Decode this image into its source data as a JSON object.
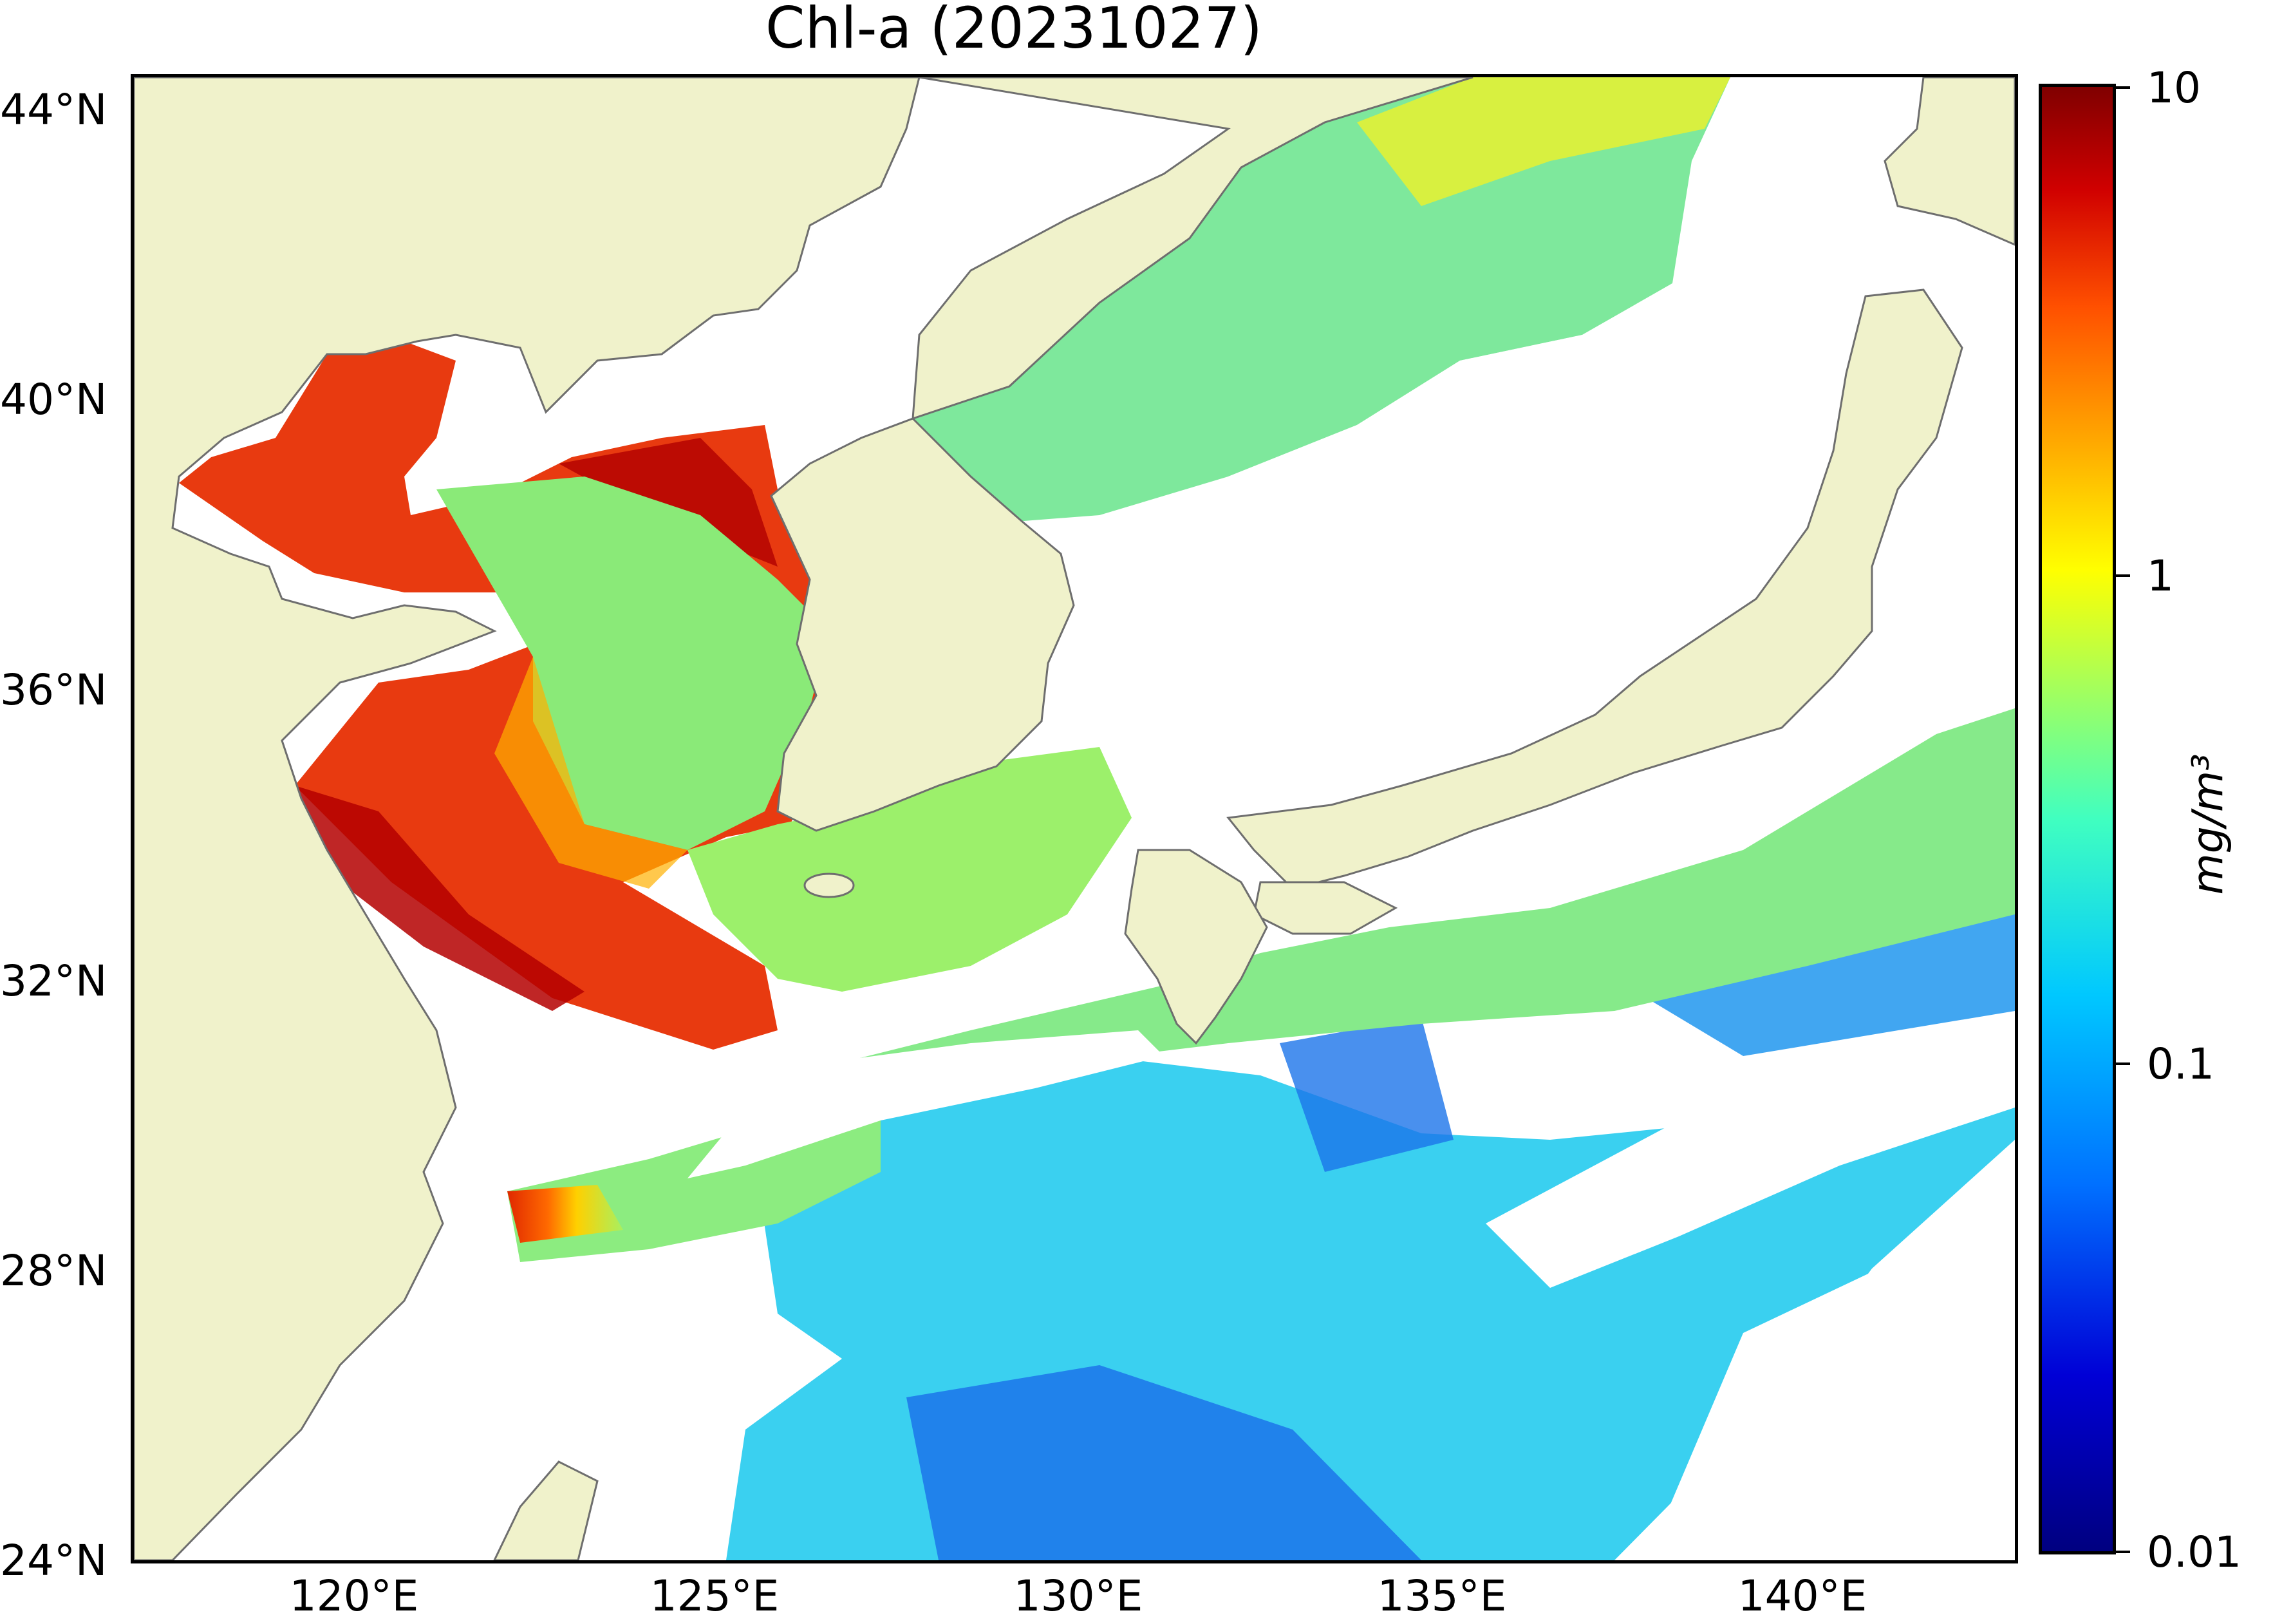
{
  "title": "Chl-a (20231027)",
  "lat_ticks": [
    "44°N",
    "40°N",
    "36°N",
    "32°N",
    "28°N",
    "24°N"
  ],
  "lon_ticks": [
    "120°E",
    "125°E",
    "130°E",
    "135°E",
    "140°E"
  ],
  "extent": {
    "lon_min": 117,
    "lon_max": 143,
    "lat_min": 24,
    "lat_max": 44.5
  },
  "colorbar": {
    "ticks": [
      "10",
      "1",
      "0.1",
      "0.01"
    ],
    "units": "mg/m³",
    "scale": "log",
    "range": [
      0.01,
      10
    ],
    "colormap": "jet"
  },
  "colors": {
    "land": "#f0f2cb",
    "coastline": "#6e6e6e",
    "cloud_nodata": "#ffffff",
    "high": "#d32000",
    "mid": "#9cf06b",
    "low": "#3ad0f0",
    "very_low": "#1c74ea"
  }
}
